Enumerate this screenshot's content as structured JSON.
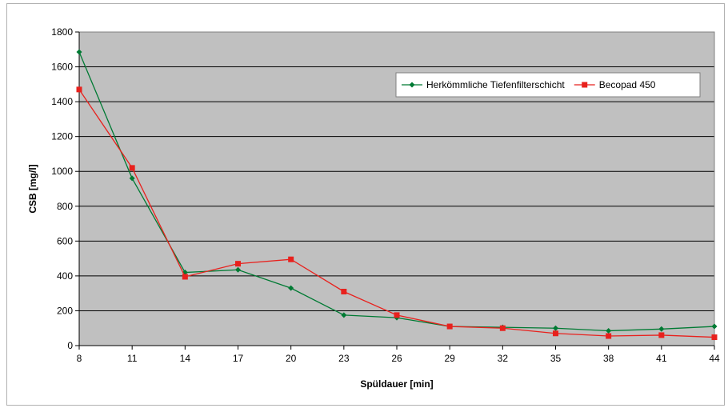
{
  "chart_data": {
    "type": "line",
    "xlabel": "Spüldauer [min]",
    "ylabel": "CSB [mg/l]",
    "x": [
      8,
      11,
      14,
      17,
      20,
      23,
      26,
      29,
      32,
      35,
      38,
      41,
      44
    ],
    "x_tick_labels": [
      "8",
      "11",
      "14",
      "17",
      "20",
      "23",
      "26",
      "29",
      "32",
      "35",
      "38",
      "41",
      "44"
    ],
    "ylim": [
      0,
      1800
    ],
    "y_ticks": [
      0,
      200,
      400,
      600,
      800,
      1000,
      1200,
      1400,
      1600,
      1800
    ],
    "y_tick_labels": [
      "0",
      "200",
      "400",
      "600",
      "800",
      "1000",
      "1200",
      "1400",
      "1600",
      "1800"
    ],
    "grid": "horizontal",
    "legend_position": "top-right",
    "series": [
      {
        "name": "Herkömmliche Tiefenfilterschicht",
        "color": "#007a33",
        "marker": "diamond",
        "values": [
          1685,
          960,
          420,
          435,
          330,
          175,
          160,
          110,
          105,
          100,
          85,
          95,
          110
        ]
      },
      {
        "name": "Becopad 450",
        "color": "#e8211d",
        "marker": "square",
        "values": [
          1470,
          1020,
          395,
          470,
          495,
          310,
          175,
          110,
          100,
          70,
          55,
          60,
          48
        ]
      }
    ]
  }
}
